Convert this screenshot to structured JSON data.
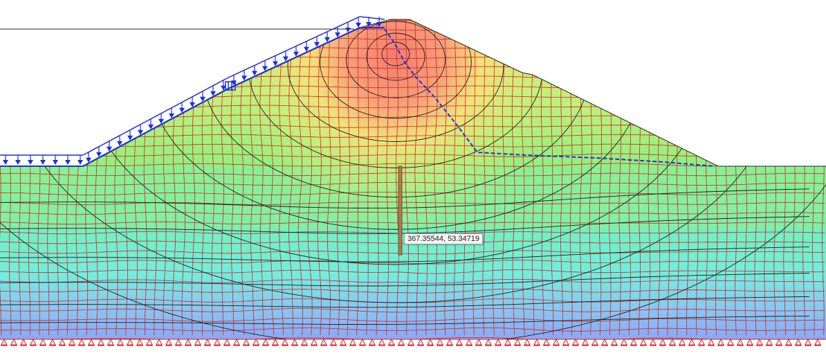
{
  "model_view": {
    "cursor_readout": "367.35544, 53.34719",
    "colors": {
      "mesh_lines": "#d91e1e",
      "contour_lines": "#1a1a1a",
      "load_arrows": "#1f2fd6",
      "phreatic_line": "#1f2fd6",
      "fixity_symbols": "#d91e1e",
      "stress_high": "#f27c6e",
      "stress_mid_high": "#f6e27a",
      "stress_mid": "#9bef7a",
      "stress_mid_low": "#6ff0c8",
      "stress_low": "#8fb8f2"
    },
    "icons": [
      "load-arrow-icon",
      "support-fixity-icon",
      "point-load-icon"
    ]
  }
}
